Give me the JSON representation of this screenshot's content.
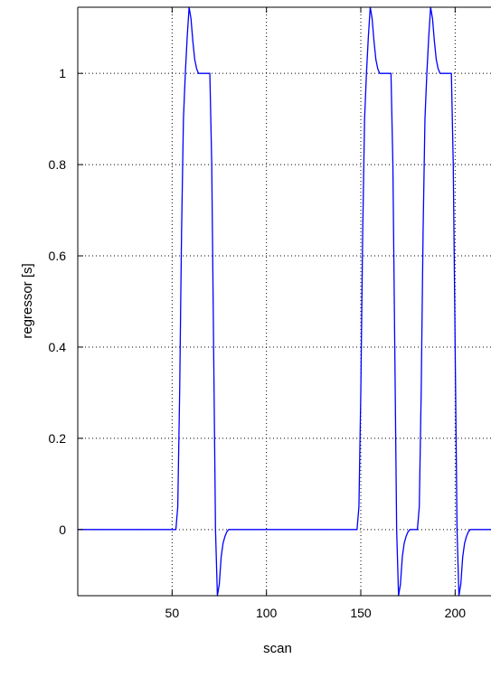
{
  "chart_data": {
    "type": "line",
    "title": "",
    "xlabel": "scan",
    "ylabel": "regressor [s]",
    "xlim": [
      0,
      219
    ],
    "ylim": [
      -0.145,
      1.145
    ],
    "grid": true,
    "xticks": [
      50,
      100,
      150,
      200
    ],
    "xtick_labels": [
      "50",
      "100",
      "150",
      "200"
    ],
    "yticks": [
      0,
      0.2,
      0.4,
      0.6,
      0.8,
      1
    ],
    "ytick_labels": [
      "0",
      "0.2",
      "0.4",
      "0.6",
      "0.8",
      "1"
    ],
    "series": [
      {
        "color": "#0000ff",
        "x": [
          0,
          52,
          53,
          54,
          55,
          56,
          57,
          58,
          59,
          60,
          61,
          62,
          63,
          64,
          66,
          68,
          70,
          71,
          72,
          73,
          74,
          75,
          76,
          77,
          78,
          79,
          80,
          82,
          84,
          86,
          100,
          148,
          149,
          150,
          151,
          152,
          153,
          154,
          155,
          156,
          157,
          158,
          159,
          160,
          162,
          164,
          166,
          167,
          168,
          169,
          170,
          171,
          172,
          173,
          174,
          175,
          176,
          178,
          180,
          181,
          182,
          183,
          184,
          185,
          186,
          187,
          188,
          189,
          190,
          191,
          192,
          193,
          194,
          196,
          198,
          199,
          200,
          201,
          202,
          203,
          204,
          205,
          206,
          207,
          208,
          210,
          219
        ],
        "y": [
          0,
          0,
          0.05,
          0.3,
          0.65,
          0.9,
          1.0,
          1.08,
          1.145,
          1.12,
          1.07,
          1.03,
          1.01,
          1.0,
          1.0,
          1.0,
          1.0,
          0.8,
          0.4,
          0.0,
          -0.145,
          -0.12,
          -0.06,
          -0.03,
          -0.015,
          -0.005,
          0,
          0,
          0,
          0,
          0,
          0,
          0.05,
          0.3,
          0.65,
          0.9,
          1.0,
          1.08,
          1.145,
          1.12,
          1.07,
          1.03,
          1.01,
          1.0,
          1.0,
          1.0,
          1.0,
          0.8,
          0.4,
          0.0,
          -0.145,
          -0.12,
          -0.06,
          -0.03,
          -0.015,
          -0.005,
          0,
          0,
          0,
          0.05,
          0.3,
          0.65,
          0.9,
          1.0,
          1.08,
          1.145,
          1.12,
          1.07,
          1.03,
          1.01,
          1.0,
          1.0,
          1.0,
          1.0,
          1.0,
          0.8,
          0.4,
          0.0,
          -0.145,
          -0.12,
          -0.06,
          -0.03,
          -0.015,
          -0.005,
          0,
          0,
          0
        ]
      }
    ]
  }
}
